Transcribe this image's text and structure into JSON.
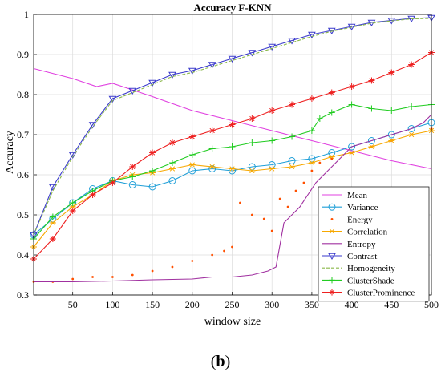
{
  "caption": {
    "open": "(",
    "letter": "b",
    "close": ")"
  },
  "chart_data": {
    "type": "line",
    "title": "Accuracy F-KNN",
    "xlabel": "window size",
    "ylabel": "Accuracy",
    "xlim": [
      1,
      500
    ],
    "ylim": [
      0.3,
      1.0
    ],
    "xticks": [
      50,
      100,
      150,
      200,
      250,
      300,
      350,
      400,
      450,
      500
    ],
    "yticks": [
      0.3,
      0.4,
      0.5,
      0.6,
      0.7,
      0.8,
      0.9,
      1
    ],
    "grid": true,
    "legend_position": "bottom-right",
    "series": [
      {
        "name": "Mean",
        "color": "#e040e0",
        "marker": "none",
        "dash": "solid",
        "x": [
          1,
          50,
          80,
          100,
          120,
          150,
          200,
          250,
          300,
          350,
          400,
          450,
          500
        ],
        "y": [
          0.865,
          0.84,
          0.82,
          0.828,
          0.815,
          0.795,
          0.76,
          0.735,
          0.71,
          0.685,
          0.66,
          0.635,
          0.615
        ]
      },
      {
        "name": "Variance",
        "color": "#1f9fd8",
        "marker": "circle",
        "dash": "solid",
        "x": [
          1,
          25,
          50,
          75,
          100,
          125,
          150,
          175,
          200,
          225,
          250,
          275,
          300,
          325,
          350,
          375,
          400,
          425,
          450,
          475,
          500
        ],
        "y": [
          0.45,
          0.49,
          0.53,
          0.565,
          0.585,
          0.575,
          0.57,
          0.585,
          0.61,
          0.615,
          0.61,
          0.62,
          0.625,
          0.635,
          0.64,
          0.655,
          0.67,
          0.685,
          0.7,
          0.715,
          0.73
        ]
      },
      {
        "name": "Energy",
        "color": "#ff5000",
        "marker": "dot",
        "dash": "none",
        "x": [
          1,
          25,
          50,
          75,
          100,
          125,
          150,
          175,
          200,
          225,
          240,
          250,
          260,
          275,
          290,
          300,
          310,
          320,
          330,
          340,
          350,
          360,
          375,
          400,
          425,
          450,
          475,
          500
        ],
        "y": [
          0.333,
          0.333,
          0.34,
          0.345,
          0.345,
          0.35,
          0.36,
          0.37,
          0.385,
          0.4,
          0.41,
          0.42,
          0.53,
          0.5,
          0.49,
          0.46,
          0.54,
          0.52,
          0.56,
          0.58,
          0.61,
          0.63,
          0.64,
          0.655,
          0.67,
          0.685,
          0.7,
          0.715
        ]
      },
      {
        "name": "Correlation",
        "color": "#f7a800",
        "marker": "star",
        "dash": "solid",
        "x": [
          1,
          25,
          50,
          75,
          100,
          125,
          150,
          175,
          200,
          225,
          250,
          275,
          300,
          325,
          350,
          375,
          400,
          425,
          450,
          475,
          500
        ],
        "y": [
          0.42,
          0.48,
          0.52,
          0.55,
          0.585,
          0.6,
          0.605,
          0.615,
          0.625,
          0.62,
          0.615,
          0.61,
          0.615,
          0.62,
          0.63,
          0.645,
          0.655,
          0.67,
          0.685,
          0.7,
          0.71
        ]
      },
      {
        "name": "Entropy",
        "color": "#a030a0",
        "marker": "none",
        "dash": "solid",
        "x": [
          1,
          50,
          100,
          150,
          200,
          225,
          250,
          275,
          295,
          305,
          315,
          325,
          335,
          345,
          355,
          365,
          375,
          390,
          400,
          425,
          450,
          475,
          490,
          500
        ],
        "y": [
          0.333,
          0.333,
          0.335,
          0.338,
          0.34,
          0.345,
          0.345,
          0.35,
          0.36,
          0.37,
          0.48,
          0.5,
          0.52,
          0.55,
          0.58,
          0.6,
          0.62,
          0.65,
          0.67,
          0.685,
          0.7,
          0.715,
          0.73,
          0.75
        ]
      },
      {
        "name": "Contrast",
        "color": "#3a3acc",
        "marker": "triangle-down",
        "dash": "solid",
        "x": [
          1,
          25,
          50,
          75,
          100,
          125,
          150,
          175,
          200,
          225,
          250,
          275,
          300,
          325,
          350,
          375,
          400,
          425,
          450,
          475,
          500
        ],
        "y": [
          0.45,
          0.57,
          0.65,
          0.725,
          0.79,
          0.81,
          0.83,
          0.85,
          0.86,
          0.875,
          0.89,
          0.905,
          0.92,
          0.935,
          0.95,
          0.96,
          0.97,
          0.98,
          0.985,
          0.99,
          0.992
        ]
      },
      {
        "name": "Homogeneity",
        "color": "#8ab84a",
        "marker": "none",
        "dash": "dashed",
        "x": [
          1,
          25,
          50,
          75,
          100,
          125,
          150,
          175,
          200,
          225,
          250,
          275,
          300,
          325,
          350,
          375,
          400,
          425,
          450,
          475,
          500
        ],
        "y": [
          0.45,
          0.56,
          0.645,
          0.72,
          0.785,
          0.805,
          0.825,
          0.845,
          0.855,
          0.87,
          0.885,
          0.9,
          0.915,
          0.93,
          0.945,
          0.958,
          0.968,
          0.978,
          0.984,
          0.989,
          0.99
        ]
      },
      {
        "name": "ClusterShade",
        "color": "#22cc22",
        "marker": "plus",
        "dash": "solid",
        "x": [
          1,
          25,
          50,
          75,
          100,
          125,
          150,
          175,
          200,
          225,
          250,
          275,
          300,
          325,
          350,
          360,
          375,
          400,
          425,
          450,
          475,
          500
        ],
        "y": [
          0.44,
          0.495,
          0.53,
          0.56,
          0.585,
          0.595,
          0.61,
          0.63,
          0.65,
          0.665,
          0.67,
          0.68,
          0.685,
          0.695,
          0.71,
          0.74,
          0.755,
          0.775,
          0.765,
          0.76,
          0.77,
          0.775
        ]
      },
      {
        "name": "ClusterProminence",
        "color": "#ee2020",
        "marker": "asterisk",
        "dash": "solid",
        "x": [
          1,
          25,
          50,
          75,
          100,
          125,
          150,
          175,
          200,
          225,
          250,
          275,
          300,
          325,
          350,
          375,
          400,
          425,
          450,
          475,
          500
        ],
        "y": [
          0.39,
          0.44,
          0.51,
          0.55,
          0.58,
          0.62,
          0.655,
          0.68,
          0.695,
          0.71,
          0.725,
          0.74,
          0.76,
          0.775,
          0.79,
          0.805,
          0.82,
          0.835,
          0.855,
          0.875,
          0.905
        ]
      }
    ]
  }
}
